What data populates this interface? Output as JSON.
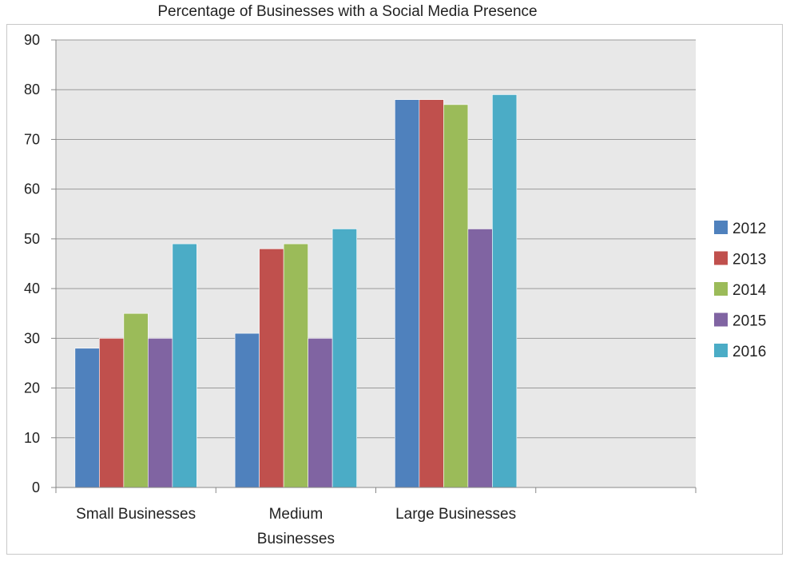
{
  "chart_data": {
    "type": "bar",
    "title": "Percentage of Businesses with a Social Media Presence",
    "xlabel": "",
    "ylabel": "",
    "ylim": [
      0,
      90
    ],
    "yticks": [
      0,
      10,
      20,
      30,
      40,
      50,
      60,
      70,
      80,
      90
    ],
    "grid": true,
    "legend_position": "right",
    "categories": [
      [
        "Small Businesses"
      ],
      [
        "Medium",
        "Businesses"
      ],
      [
        "Large Businesses"
      ],
      [
        ""
      ]
    ],
    "series": [
      {
        "name": "2012",
        "color": "#4f81bd",
        "values": [
          28,
          31,
          78,
          null
        ]
      },
      {
        "name": "2013",
        "color": "#c0504d",
        "values": [
          30,
          48,
          78,
          null
        ]
      },
      {
        "name": "2014",
        "color": "#9bbb59",
        "values": [
          35,
          49,
          77,
          null
        ]
      },
      {
        "name": "2015",
        "color": "#8064a2",
        "values": [
          30,
          30,
          52,
          null
        ]
      },
      {
        "name": "2016",
        "color": "#4bacc6",
        "values": [
          49,
          52,
          79,
          null
        ]
      }
    ],
    "colors": {
      "plot_background": "#e8e8e8",
      "gridline": "#9a9a9a"
    }
  }
}
